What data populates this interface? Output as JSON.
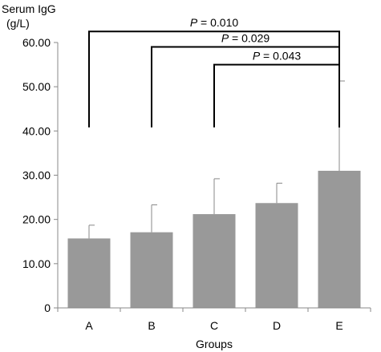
{
  "chart_data": {
    "type": "bar",
    "ylabel_line1": "Serum IgG",
    "ylabel_line2": "(g/L)",
    "xlabel": "Groups",
    "categories": [
      "A",
      "B",
      "C",
      "D",
      "E"
    ],
    "values": [
      15.7,
      17.1,
      21.2,
      23.7,
      31.0
    ],
    "error_upper": [
      18.7,
      23.3,
      29.2,
      28.2,
      51.3
    ],
    "ylim": [
      0,
      60
    ],
    "yticks": [
      0,
      10,
      20,
      30,
      40,
      50,
      60
    ],
    "ytick_labels": [
      "0",
      "10.00",
      "20.00",
      "30.00",
      "40.00",
      "50.00",
      "60.00"
    ],
    "bar_color": "#999999",
    "significance": [
      {
        "p_letter": "P",
        "text": " = 0.010",
        "from": "A",
        "to": "E",
        "y": 62.5,
        "drop_to": 40.8
      },
      {
        "p_letter": "P",
        "text": " = 0.029",
        "from": "B",
        "to": "E",
        "y": 59.0,
        "drop_to": 40.8
      },
      {
        "p_letter": "P",
        "text": " = 0.043",
        "from": "C",
        "to": "E",
        "y": 55.0,
        "drop_to": 40.8
      }
    ]
  }
}
